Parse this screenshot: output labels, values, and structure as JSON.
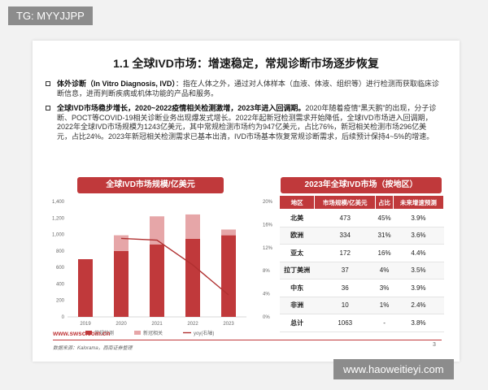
{
  "watermark_tl": "TG: MYYJJPP",
  "watermark_br": "www.haoweitieyi.com",
  "title": "1.1 全球IVD市场：增速稳定，常规诊断市场逐步恢复",
  "bullets": [
    {
      "lead": "体外诊断（In Vitro Diagnosis, IVD）",
      "text": "：指在人体之外，通过对人体样本（血液、体液、组织等）进行检测而获取临床诊断信息，进而判断疾病或机体功能的产品和服务。"
    },
    {
      "lead": "全球IVD市场稳步增长，2020~2022疫情相关检测激增，2023年进入回调期。",
      "text": "2020年随着疫情“黑天鹅”的出现，分子诊断、POCT等COVID-19相关诊断业务出现爆发式增长。2022年起新冠检测需求开始降低，全球IVD市场进入回调期，2022年全球IVD市场规模为1243亿美元，其中常规检测市场约为947亿美元，占比76%，新冠相关检测市场296亿美元，占比24%。2023年新冠相关检测需求已基本出清，IVD市场基本恢复常规诊断需求，后续预计保持4~5%的增速。"
    }
  ],
  "chart_title": "全球IVD市场规模/亿美元",
  "chart_data": {
    "type": "bar",
    "categories": [
      "2019",
      "2020",
      "2021",
      "2022",
      "2023"
    ],
    "series": [
      {
        "name": "常规检测",
        "type": "bar",
        "stack": "total",
        "color": "#c0393b",
        "values": [
          700,
          800,
          880,
          947,
          990
        ]
      },
      {
        "name": "新冠相关",
        "type": "bar",
        "stack": "total",
        "color": "#e6a6a8",
        "values": [
          0,
          190,
          340,
          296,
          70
        ]
      },
      {
        "name": "yoy(右轴)",
        "type": "line",
        "axis": "right",
        "color": "#b03030",
        "values": [
          null,
          13.6,
          13.3,
          9.0,
          3.8
        ]
      }
    ],
    "ylim": [
      0,
      1400
    ],
    "yticks": [
      "0",
      "200",
      "400",
      "600",
      "800",
      "1,000",
      "1,200",
      "1,400"
    ],
    "ylim_right": [
      0,
      20
    ],
    "yticks_right": [
      "0%",
      "4%",
      "8%",
      "12%",
      "16%",
      "20%"
    ],
    "legend_position": "bottom"
  },
  "table_title": "2023年全球IVD市场（按地区）",
  "table": {
    "headers": [
      "地区",
      "市场规模/亿美元",
      "占比",
      "未来增速预测"
    ],
    "rows": [
      [
        "北美",
        "473",
        "45%",
        "3.9%"
      ],
      [
        "欧洲",
        "334",
        "31%",
        "3.6%"
      ],
      [
        "亚太",
        "172",
        "16%",
        "4.4%"
      ],
      [
        "拉丁美洲",
        "37",
        "4%",
        "3.5%"
      ],
      [
        "中东",
        "36",
        "3%",
        "3.9%"
      ],
      [
        "非洲",
        "10",
        "1%",
        "2.4%"
      ],
      [
        "总计",
        "1063",
        "-",
        "3.8%"
      ]
    ]
  },
  "footer_url": "www.swsc.com.cn",
  "source": "数据来源：Kalorama，西南证券整理",
  "page_number": "3"
}
